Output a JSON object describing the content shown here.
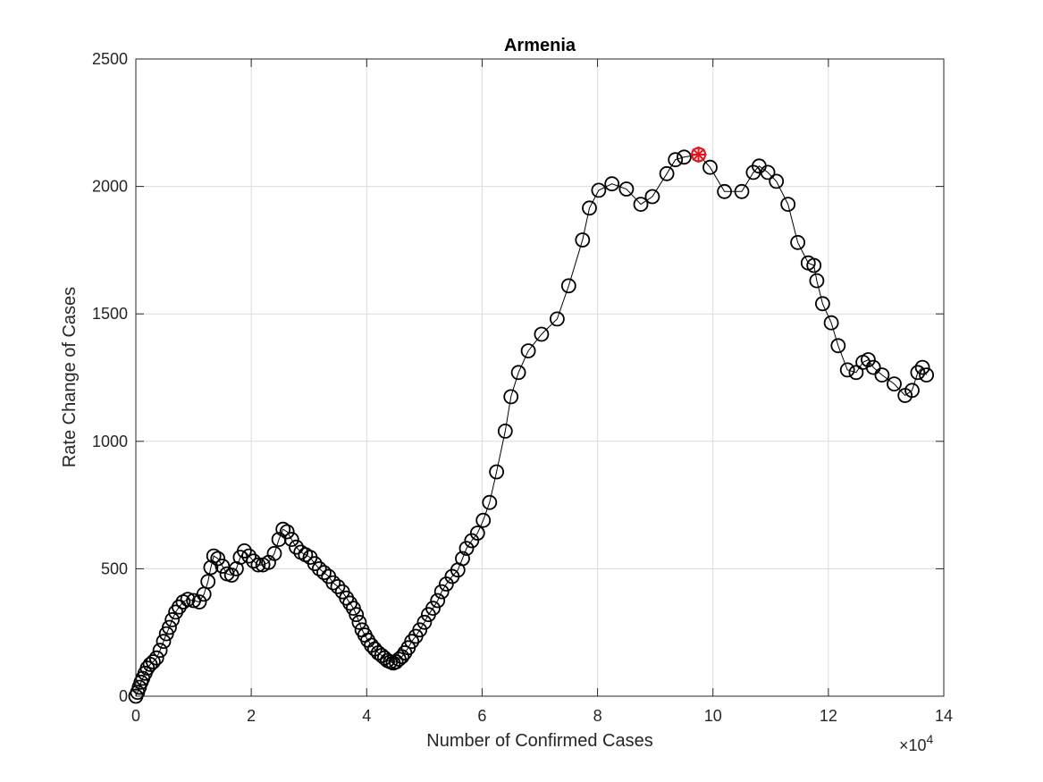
{
  "chart_data": {
    "type": "line",
    "title": "Armenia",
    "xlabel": "Number of Confirmed Cases",
    "ylabel": "Rate Change of Cases",
    "x_exponent_label": "×10",
    "x_exponent_power": "4",
    "x_scale": 10000,
    "xlim": [
      0,
      140000
    ],
    "ylim": [
      0,
      2500
    ],
    "x_ticks": [
      0,
      20000,
      40000,
      60000,
      80000,
      100000,
      120000,
      140000
    ],
    "x_tick_labels": [
      "0",
      "2",
      "4",
      "6",
      "8",
      "10",
      "12",
      "14"
    ],
    "y_ticks": [
      0,
      500,
      1000,
      1500,
      2000,
      2500
    ],
    "y_tick_labels": [
      "0",
      "500",
      "1000",
      "1500",
      "2000",
      "2500"
    ],
    "grid": true,
    "series_color": "#000000",
    "highlight_color": "#e8141b",
    "series": [
      {
        "marker": "circle",
        "points": [
          [
            0,
            0
          ],
          [
            300,
            15
          ],
          [
            600,
            35
          ],
          [
            900,
            55
          ],
          [
            1200,
            70
          ],
          [
            1600,
            90
          ],
          [
            2000,
            110
          ],
          [
            2500,
            125
          ],
          [
            3000,
            135
          ],
          [
            3600,
            150
          ],
          [
            4200,
            180
          ],
          [
            4800,
            215
          ],
          [
            5300,
            245
          ],
          [
            5800,
            270
          ],
          [
            6300,
            300
          ],
          [
            6900,
            330
          ],
          [
            7500,
            350
          ],
          [
            8200,
            370
          ],
          [
            9000,
            380
          ],
          [
            10000,
            375
          ],
          [
            11000,
            370
          ],
          [
            11800,
            400
          ],
          [
            12500,
            450
          ],
          [
            13000,
            505
          ],
          [
            13500,
            550
          ],
          [
            14200,
            540
          ],
          [
            15000,
            510
          ],
          [
            15800,
            480
          ],
          [
            16600,
            475
          ],
          [
            17400,
            500
          ],
          [
            18100,
            545
          ],
          [
            18800,
            570
          ],
          [
            19600,
            550
          ],
          [
            20400,
            530
          ],
          [
            21200,
            515
          ],
          [
            22000,
            515
          ],
          [
            23000,
            525
          ],
          [
            24000,
            560
          ],
          [
            24800,
            615
          ],
          [
            25500,
            655
          ],
          [
            26200,
            645
          ],
          [
            27000,
            615
          ],
          [
            27800,
            585
          ],
          [
            28600,
            565
          ],
          [
            29400,
            555
          ],
          [
            30200,
            545
          ],
          [
            31000,
            520
          ],
          [
            31800,
            500
          ],
          [
            32600,
            485
          ],
          [
            33400,
            470
          ],
          [
            34200,
            445
          ],
          [
            35000,
            430
          ],
          [
            35800,
            410
          ],
          [
            36500,
            385
          ],
          [
            37100,
            365
          ],
          [
            37700,
            345
          ],
          [
            38200,
            320
          ],
          [
            38700,
            290
          ],
          [
            39200,
            260
          ],
          [
            39700,
            240
          ],
          [
            40200,
            220
          ],
          [
            40800,
            200
          ],
          [
            41400,
            185
          ],
          [
            42000,
            170
          ],
          [
            42600,
            160
          ],
          [
            43100,
            150
          ],
          [
            43600,
            140
          ],
          [
            44100,
            135
          ],
          [
            44600,
            130
          ],
          [
            45100,
            135
          ],
          [
            45600,
            145
          ],
          [
            46100,
            155
          ],
          [
            46600,
            170
          ],
          [
            47200,
            190
          ],
          [
            47800,
            215
          ],
          [
            48500,
            235
          ],
          [
            49200,
            260
          ],
          [
            50000,
            290
          ],
          [
            50700,
            320
          ],
          [
            51500,
            345
          ],
          [
            52300,
            375
          ],
          [
            53000,
            410
          ],
          [
            53800,
            440
          ],
          [
            54800,
            470
          ],
          [
            55800,
            495
          ],
          [
            56600,
            540
          ],
          [
            57300,
            580
          ],
          [
            58200,
            610
          ],
          [
            59200,
            640
          ],
          [
            60200,
            690
          ],
          [
            61300,
            760
          ],
          [
            62500,
            880
          ],
          [
            64000,
            1040
          ],
          [
            65000,
            1175
          ],
          [
            66300,
            1270
          ],
          [
            68000,
            1355
          ],
          [
            70300,
            1420
          ],
          [
            73000,
            1480
          ],
          [
            75000,
            1610
          ],
          [
            77400,
            1790
          ],
          [
            78600,
            1915
          ],
          [
            80200,
            1985
          ],
          [
            82500,
            2010
          ],
          [
            85000,
            1990
          ],
          [
            87500,
            1930
          ],
          [
            89500,
            1960
          ],
          [
            92000,
            2050
          ],
          [
            93500,
            2105
          ],
          [
            95000,
            2115
          ],
          [
            97500,
            2125
          ],
          [
            99500,
            2075
          ],
          [
            102000,
            1980
          ],
          [
            105000,
            1980
          ],
          [
            107000,
            2055
          ],
          [
            108000,
            2080
          ],
          [
            109500,
            2055
          ],
          [
            111000,
            2020
          ],
          [
            113000,
            1930
          ],
          [
            114700,
            1780
          ],
          [
            116500,
            1700
          ],
          [
            117500,
            1690
          ],
          [
            118000,
            1630
          ],
          [
            119000,
            1540
          ],
          [
            120500,
            1465
          ],
          [
            121700,
            1375
          ],
          [
            123300,
            1280
          ],
          [
            124800,
            1270
          ],
          [
            126000,
            1310
          ],
          [
            126900,
            1320
          ],
          [
            127800,
            1290
          ],
          [
            129300,
            1260
          ],
          [
            131400,
            1225
          ],
          [
            133300,
            1180
          ],
          [
            134500,
            1200
          ],
          [
            135500,
            1270
          ],
          [
            136300,
            1290
          ],
          [
            137000,
            1260
          ]
        ]
      }
    ],
    "highlight_point": [
      97500,
      2125
    ]
  }
}
